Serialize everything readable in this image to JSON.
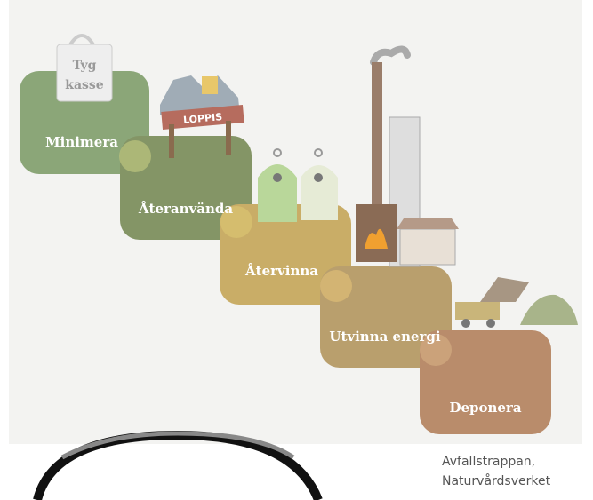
{
  "steps": [
    {
      "label": "Minimera"
    },
    {
      "label": "Återanvända"
    },
    {
      "label": "Återvinna"
    },
    {
      "label": "Utvinna energi"
    },
    {
      "label": "Deponera"
    }
  ],
  "icons": {
    "bag": [
      "Tyg",
      "kasse"
    ],
    "sign": "LOPPIS"
  },
  "caption": [
    "Avfallstrappan,",
    "Naturvårdsverket"
  ]
}
